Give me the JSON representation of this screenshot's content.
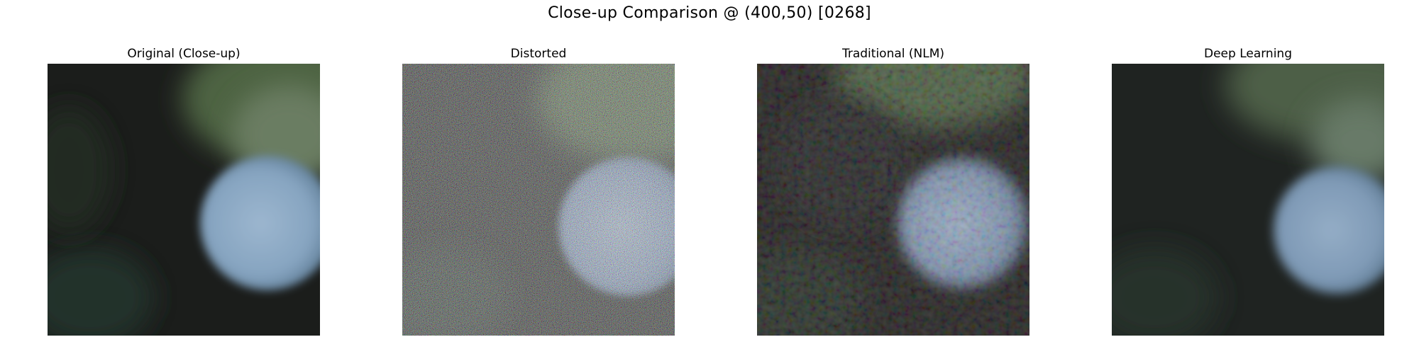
{
  "figure": {
    "title": "Close-up Comparison @ (400,50) [0268]"
  },
  "panels": [
    {
      "title": "Original (Close-up)"
    },
    {
      "title": "Distorted"
    },
    {
      "title": "Traditional (NLM)"
    },
    {
      "title": "Deep Learning"
    }
  ],
  "colors": {
    "background_dark": "#1b1d1b",
    "foliage_green": "#4e6343",
    "bokeh_blue": "#8aa8c4"
  }
}
